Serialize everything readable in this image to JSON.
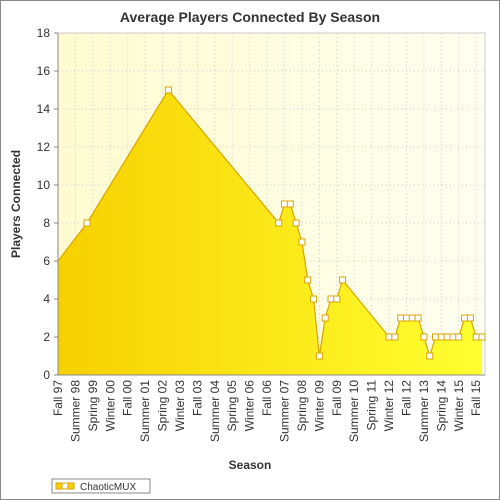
{
  "chart_data": {
    "type": "area",
    "title": "Average Players Connected By Season",
    "x_label": "Season",
    "y_label": "Players Connected",
    "categories": [
      "Fall 97",
      null,
      null,
      "Summer 98",
      null,
      null,
      "Spring 99",
      null,
      null,
      "Winter 00",
      null,
      null,
      "Fall 00",
      null,
      null,
      "Summer 01",
      null,
      null,
      "Spring 02",
      null,
      null,
      "Winter 03",
      null,
      null,
      "Fall 03",
      null,
      null,
      "Summer 04",
      null,
      null,
      "Spring 05",
      null,
      null,
      "Winter 06",
      null,
      null,
      "Fall 06",
      null,
      null,
      "Summer 07",
      null,
      null,
      "Spring 08",
      null,
      null,
      "Winter 09",
      null,
      null,
      "Fall 09",
      null,
      null,
      "Summer 10",
      null,
      null,
      "Spring 11",
      null,
      null,
      "Winter 12",
      null,
      null,
      "Fall 12",
      null,
      null,
      "Summer 13",
      null,
      null,
      "Spring 14",
      null,
      null,
      "Winter 15",
      null,
      null,
      "Fall 15",
      null
    ],
    "series": [
      {
        "name": "ChaoticMUX",
        "color": "#d9a400",
        "values": [
          6,
          null,
          null,
          null,
          null,
          8,
          null,
          null,
          null,
          null,
          null,
          null,
          null,
          null,
          null,
          null,
          null,
          null,
          null,
          15,
          null,
          null,
          null,
          null,
          null,
          null,
          null,
          null,
          null,
          null,
          null,
          null,
          null,
          null,
          null,
          null,
          null,
          null,
          8,
          9,
          9,
          8,
          7,
          5,
          4,
          1,
          3,
          4,
          4,
          5,
          null,
          null,
          null,
          null,
          null,
          null,
          null,
          2,
          2,
          3,
          3,
          3,
          3,
          2,
          1,
          2,
          2,
          2,
          2,
          2,
          3,
          3,
          2,
          2
        ]
      }
    ],
    "ylim": [
      0,
      18
    ],
    "yticks": [
      0,
      2,
      4,
      6,
      8,
      10,
      12,
      14,
      16,
      18
    ],
    "grid": true,
    "legend": "bottom-left"
  }
}
